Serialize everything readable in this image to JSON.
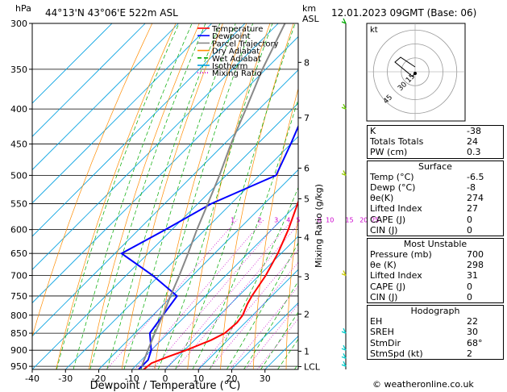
{
  "header": {
    "left_units": "hPa",
    "location": "44°13'N 43°06'E 522m ASL",
    "right_units": "km",
    "right_units2": "ASL",
    "datetime": "12.01.2023 09GMT (Base: 06)"
  },
  "legend": [
    {
      "label": "Temperature",
      "color": "#ff0000"
    },
    {
      "label": "Dewpoint",
      "color": "#0000ff"
    },
    {
      "label": "Parcel Trajectory",
      "color": "#888888"
    },
    {
      "label": "Dry Adiabat",
      "color": "#ff8c00"
    },
    {
      "label": "Wet Adiabat",
      "color": "#00aa00"
    },
    {
      "label": "Isotherm",
      "color": "#00a0e0"
    },
    {
      "label": "Mixing Ratio",
      "color": "#cc00cc"
    }
  ],
  "chart_data": {
    "type": "line",
    "chart_kind": "skew-t log-p",
    "xlabel": "Dewpoint / Temperature (°C)",
    "ylabel_left": "hPa",
    "ylabel_right": "Mixing Ratio (g/kg)",
    "x_ticks": [
      -40,
      -30,
      -20,
      -10,
      0,
      10,
      20,
      30
    ],
    "pressure_levels": [
      300,
      350,
      400,
      450,
      500,
      550,
      600,
      650,
      700,
      750,
      800,
      850,
      900,
      950
    ],
    "km_ticks": [
      {
        "p": 342,
        "km": "8"
      },
      {
        "p": 412,
        "km": "7"
      },
      {
        "p": 488,
        "km": "6"
      },
      {
        "p": 541,
        "km": "5"
      },
      {
        "p": 616,
        "km": "4"
      },
      {
        "p": 703,
        "km": "3"
      },
      {
        "p": 797,
        "km": "2"
      },
      {
        "p": 903,
        "km": "1"
      },
      {
        "p": 951,
        "km": "LCL"
      }
    ],
    "mixing_ratio_labels": [
      "1",
      "2",
      "3",
      "4",
      "5",
      "8",
      "10",
      "15",
      "20",
      "25"
    ],
    "mixing_ratio_values": [
      1,
      2,
      3,
      4,
      5,
      8,
      10,
      15,
      20,
      25
    ],
    "series": [
      {
        "name": "Temperature",
        "color": "#ff0000",
        "points": [
          [
            960,
            -6.5
          ],
          [
            940,
            -6.0
          ],
          [
            920,
            -3.0
          ],
          [
            900,
            0.5
          ],
          [
            870,
            5.0
          ],
          [
            850,
            7.0
          ],
          [
            820,
            7.5
          ],
          [
            800,
            7.0
          ],
          [
            770,
            5.0
          ],
          [
            750,
            4.0
          ],
          [
            700,
            2.0
          ],
          [
            650,
            -1.0
          ],
          [
            600,
            -5.0
          ],
          [
            550,
            -10.0
          ],
          [
            500,
            -15.5
          ],
          [
            450,
            -22.0
          ],
          [
            400,
            -28.5
          ],
          [
            350,
            -36.0
          ],
          [
            300,
            -43.0
          ]
        ]
      },
      {
        "name": "Dewpoint",
        "color": "#0000ff",
        "points": [
          [
            960,
            -8.0
          ],
          [
            930,
            -8.0
          ],
          [
            900,
            -10.0
          ],
          [
            850,
            -15.5
          ],
          [
            800,
            -17.0
          ],
          [
            750,
            -18.5
          ],
          [
            700,
            -32.0
          ],
          [
            650,
            -48.0
          ],
          [
            600,
            -42.0
          ],
          [
            550,
            -36.0
          ],
          [
            500,
            -25.0
          ],
          [
            450,
            -30.0
          ],
          [
            400,
            -36.0
          ],
          [
            350,
            -43.0
          ],
          [
            300,
            -49.0
          ]
        ]
      },
      {
        "name": "Parcel Trajectory",
        "color": "#888888",
        "points": [
          [
            950,
            -8.0
          ],
          [
            900,
            -11.0
          ],
          [
            850,
            -14.0
          ],
          [
            800,
            -17.0
          ],
          [
            750,
            -20.5
          ],
          [
            700,
            -24.0
          ],
          [
            650,
            -28.0
          ],
          [
            600,
            -32.5
          ],
          [
            550,
            -37.0
          ],
          [
            500,
            -42.0
          ],
          [
            450,
            -48.0
          ],
          [
            400,
            -54.0
          ],
          [
            350,
            -61.0
          ],
          [
            300,
            -68.0
          ]
        ]
      }
    ],
    "wind_barbs": [
      {
        "p": 300,
        "color": "#00aa00"
      },
      {
        "p": 400,
        "color": "#66cc00"
      },
      {
        "p": 500,
        "color": "#99cc00"
      },
      {
        "p": 700,
        "color": "#cccc00"
      },
      {
        "p": 850,
        "color": "#00cccc"
      },
      {
        "p": 900,
        "color": "#00cccc"
      },
      {
        "p": 925,
        "color": "#00cccc"
      },
      {
        "p": 950,
        "color": "#00cccc"
      }
    ]
  },
  "hodograph": {
    "label": "kt",
    "ring_labels": [
      "15",
      "30",
      "45"
    ]
  },
  "stats_top": [
    {
      "label": "K",
      "value": "-38"
    },
    {
      "label": "Totals Totals",
      "value": "24"
    },
    {
      "label": "PW (cm)",
      "value": "0.3"
    }
  ],
  "surface": {
    "title": "Surface",
    "rows": [
      {
        "label": "Temp (°C)",
        "value": "-6.5"
      },
      {
        "label": "Dewp (°C)",
        "value": "-8"
      },
      {
        "label": "θe(K)",
        "value": "274"
      },
      {
        "label": "Lifted Index",
        "value": "27"
      },
      {
        "label": "CAPE (J)",
        "value": "0"
      },
      {
        "label": "CIN (J)",
        "value": "0"
      }
    ]
  },
  "most_unstable": {
    "title": "Most Unstable",
    "rows": [
      {
        "label": "Pressure (mb)",
        "value": "700"
      },
      {
        "label": "θe (K)",
        "value": "298"
      },
      {
        "label": "Lifted Index",
        "value": "31"
      },
      {
        "label": "CAPE (J)",
        "value": "0"
      },
      {
        "label": "CIN (J)",
        "value": "0"
      }
    ]
  },
  "hodograph_stats": {
    "title": "Hodograph",
    "rows": [
      {
        "label": "EH",
        "value": "22"
      },
      {
        "label": "SREH",
        "value": "30"
      },
      {
        "label": "StmDir",
        "value": "68°"
      },
      {
        "label": "StmSpd (kt)",
        "value": "2"
      }
    ]
  },
  "credit": "© weatheronline.co.uk"
}
